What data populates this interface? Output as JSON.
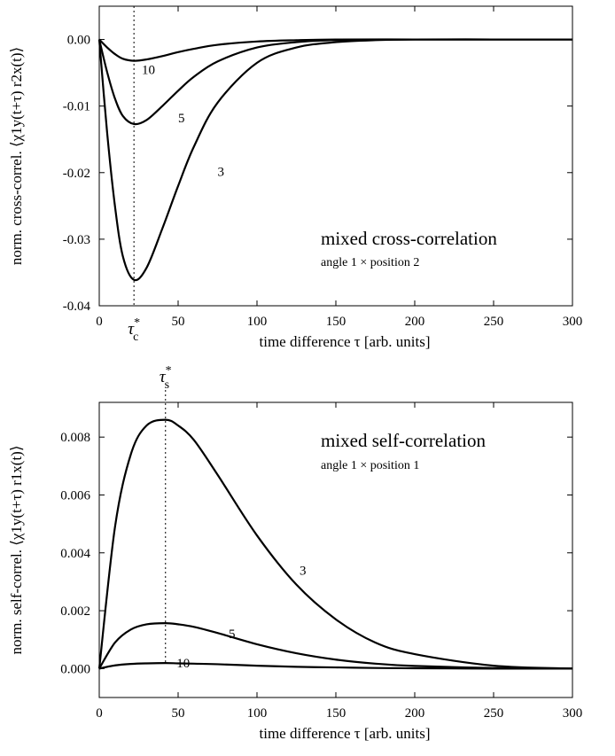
{
  "chart_data": [
    {
      "type": "line",
      "xlabel": "time difference τ [arb. units]",
      "ylabel": "norm. cross-correl. ⟨χ1y(t+τ) r2x(t)⟩",
      "xlim": [
        0,
        300
      ],
      "ylim": [
        -0.04,
        0.005
      ],
      "xticks": [
        0,
        50,
        100,
        150,
        200,
        250,
        300
      ],
      "yticks": [
        -0.04,
        -0.03,
        -0.02,
        -0.01,
        0.0
      ],
      "ytick_labels": [
        "-0.04",
        "-0.03",
        "-0.02",
        "-0.01",
        "0.00"
      ],
      "grid": false,
      "annotation_title": "mixed cross-correlation",
      "annotation_subtitle": "angle 1 × position 2",
      "marker": {
        "label": "τ*c",
        "x": 22
      },
      "series": [
        {
          "name": "10",
          "peak_x": 22,
          "peak_y": -0.0032,
          "x": [
            0,
            5,
            10,
            15,
            22,
            30,
            40,
            50,
            60,
            75,
            100,
            125,
            150,
            200,
            250,
            300
          ],
          "y": [
            0,
            -0.0012,
            -0.0022,
            -0.0029,
            -0.0032,
            -0.003,
            -0.0025,
            -0.0019,
            -0.0014,
            -0.0008,
            -0.0003,
            -0.0001,
            0,
            0,
            0,
            0
          ]
        },
        {
          "name": "5",
          "peak_x": 22,
          "peak_y": -0.0127,
          "x": [
            0,
            5,
            10,
            15,
            22,
            30,
            40,
            50,
            60,
            75,
            100,
            125,
            150,
            200,
            250,
            300
          ],
          "y": [
            0,
            -0.0049,
            -0.0089,
            -0.0115,
            -0.0127,
            -0.0121,
            -0.01,
            -0.0077,
            -0.0056,
            -0.0033,
            -0.0012,
            -0.0004,
            -0.0001,
            0,
            0,
            0
          ]
        },
        {
          "name": "3",
          "peak_x": 22,
          "peak_y": -0.0361,
          "x": [
            0,
            5,
            10,
            15,
            22,
            30,
            40,
            50,
            60,
            75,
            100,
            125,
            150,
            175,
            200,
            250,
            300
          ],
          "y": [
            0,
            -0.014,
            -0.0251,
            -0.0326,
            -0.0361,
            -0.0343,
            -0.0284,
            -0.022,
            -0.0161,
            -0.0095,
            -0.0035,
            -0.0012,
            -0.0004,
            -0.0001,
            0,
            0,
            0
          ]
        }
      ],
      "curve_labels": [
        {
          "text": "10",
          "x": 27,
          "y": -0.0045
        },
        {
          "text": "5",
          "x": 50,
          "y": -0.0118
        },
        {
          "text": "3",
          "x": 75,
          "y": -0.0198
        }
      ]
    },
    {
      "type": "line",
      "xlabel": "time difference τ [arb. units]",
      "ylabel": "norm. self-correl. ⟨χ1y(t+τ) r1x(t)⟩",
      "xlim": [
        0,
        300
      ],
      "ylim": [
        -0.001,
        0.0092
      ],
      "xticks": [
        0,
        50,
        100,
        150,
        200,
        250,
        300
      ],
      "yticks": [
        0.0,
        0.002,
        0.004,
        0.006,
        0.008
      ],
      "ytick_labels": [
        "0.000",
        "0.002",
        "0.004",
        "0.006",
        "0.008"
      ],
      "grid": false,
      "annotation_title": "mixed self-correlation",
      "annotation_subtitle": "angle 1 × position 1",
      "marker": {
        "label": "τ*s",
        "x": 42
      },
      "series": [
        {
          "name": "3",
          "peak_x": 42,
          "peak_y": 0.0086,
          "x": [
            0,
            10,
            20,
            30,
            42,
            50,
            60,
            75,
            100,
            125,
            150,
            175,
            200,
            250,
            300
          ],
          "y": [
            0,
            0.0049,
            0.0074,
            0.0084,
            0.0086,
            0.0084,
            0.0079,
            0.0067,
            0.0046,
            0.0029,
            0.0017,
            0.0009,
            0.0005,
            0.0001,
            0
          ]
        },
        {
          "name": "5",
          "peak_x": 42,
          "peak_y": 0.00157,
          "x": [
            0,
            10,
            20,
            30,
            42,
            50,
            60,
            75,
            100,
            125,
            150,
            175,
            200,
            250,
            300
          ],
          "y": [
            0,
            0.0009,
            0.00135,
            0.00153,
            0.00157,
            0.00153,
            0.00144,
            0.00123,
            0.00084,
            0.00053,
            0.00031,
            0.00017,
            9e-05,
            2e-05,
            0
          ]
        },
        {
          "name": "10",
          "peak_x": 42,
          "peak_y": 0.00019,
          "x": [
            0,
            10,
            20,
            30,
            42,
            50,
            60,
            75,
            100,
            125,
            150,
            175,
            200,
            250,
            300
          ],
          "y": [
            0,
            0.00011,
            0.00016,
            0.00018,
            0.00019,
            0.00018,
            0.00017,
            0.00015,
            0.0001,
            6e-05,
            4e-05,
            2e-05,
            1e-05,
            0,
            0
          ]
        }
      ],
      "curve_labels": [
        {
          "text": "3",
          "x": 127,
          "y": 0.0034
        },
        {
          "text": "5",
          "x": 82,
          "y": 0.0012
        },
        {
          "text": "10",
          "x": 49,
          "y": 0.0002
        }
      ]
    }
  ]
}
